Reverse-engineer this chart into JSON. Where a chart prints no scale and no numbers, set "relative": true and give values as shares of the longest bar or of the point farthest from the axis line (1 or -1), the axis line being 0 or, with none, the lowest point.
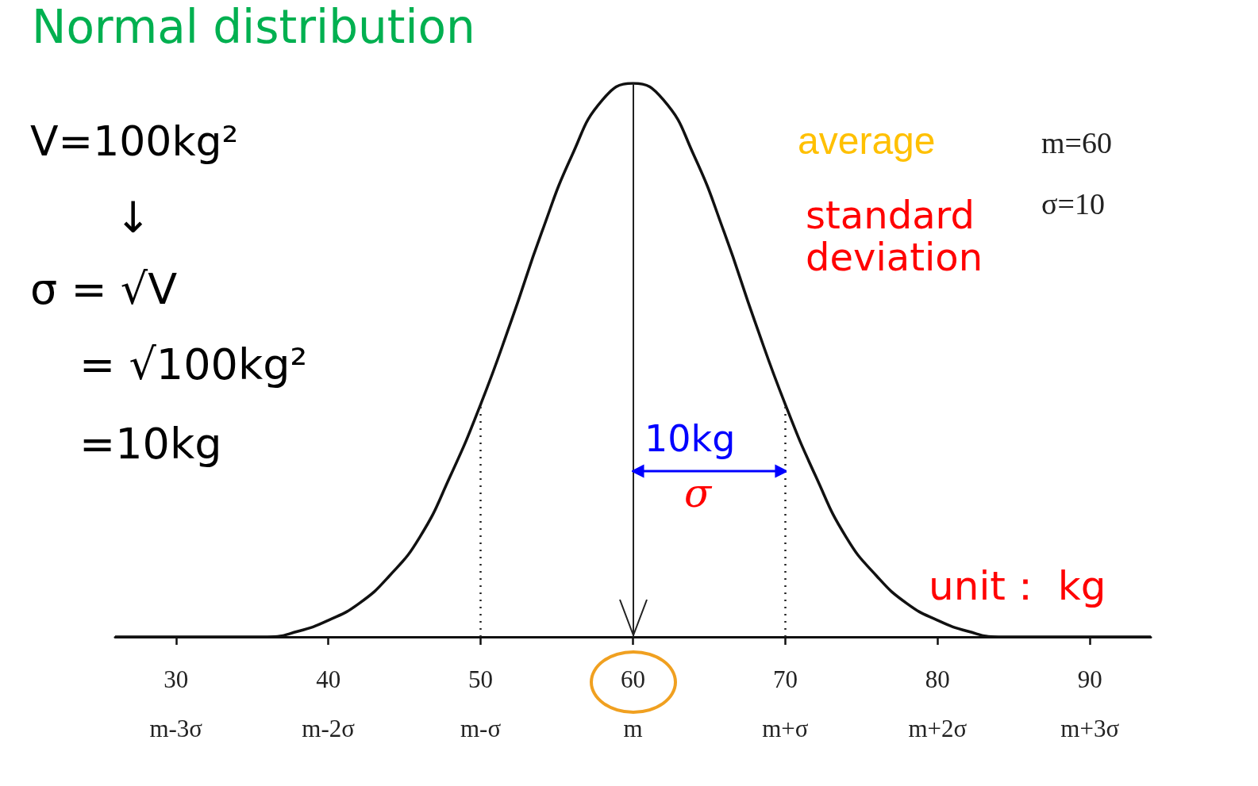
{
  "chart_data": {
    "type": "line",
    "title": "Normal distribution",
    "relative": true,
    "grid": false,
    "tick_labels": "x",
    "marker": "none",
    "line_style": "solid",
    "x": [
      26,
      28,
      30,
      32,
      34,
      36,
      38,
      40,
      42,
      44,
      46,
      48,
      50,
      52,
      54,
      56,
      58,
      60,
      62,
      64,
      66,
      68,
      70,
      72,
      74,
      76,
      78,
      80,
      82,
      84,
      86,
      88,
      90,
      92,
      94
    ],
    "series": [
      {
        "color": "#111111",
        "values": [
          0,
          0,
          0,
          0,
          0,
          0,
          0.01,
          0.03,
          0.06,
          0.11,
          0.18,
          0.29,
          0.42,
          0.57,
          0.73,
          0.87,
          0.97,
          1,
          0.97,
          0.87,
          0.73,
          0.57,
          0.42,
          0.29,
          0.18,
          0.11,
          0.06,
          0.03,
          0.01,
          0,
          0,
          0,
          0,
          0,
          0
        ]
      }
    ],
    "xlim": [
      26,
      94
    ],
    "xticks": [
      {
        "value": 30,
        "label": "30\nm-3σ"
      },
      {
        "value": 40,
        "label": "40\nm-2σ"
      },
      {
        "value": 50,
        "label": "50\nm-σ"
      },
      {
        "value": 60,
        "label": "60\nm"
      },
      {
        "value": 70,
        "label": "70\nm+σ"
      },
      {
        "value": 80,
        "label": "80\nm+2σ"
      },
      {
        "value": 90,
        "label": "90\nm+3σ"
      }
    ],
    "ref_lines": [
      {
        "axis": "x",
        "value": 50,
        "line_style": "dotted",
        "color": "#222222"
      },
      {
        "axis": "x",
        "value": 60,
        "line_style": "solid",
        "color": "#222222"
      },
      {
        "axis": "x",
        "value": 70,
        "line_style": "dotted",
        "color": "#222222"
      }
    ],
    "annotations": [
      "V=100kg²",
      "↓",
      "σ = √V",
      "= √100kg²",
      "=10kg",
      "10kg",
      "σ",
      "average",
      "standard deviation",
      "m=60",
      "σ=10",
      "unit： kg"
    ]
  }
}
